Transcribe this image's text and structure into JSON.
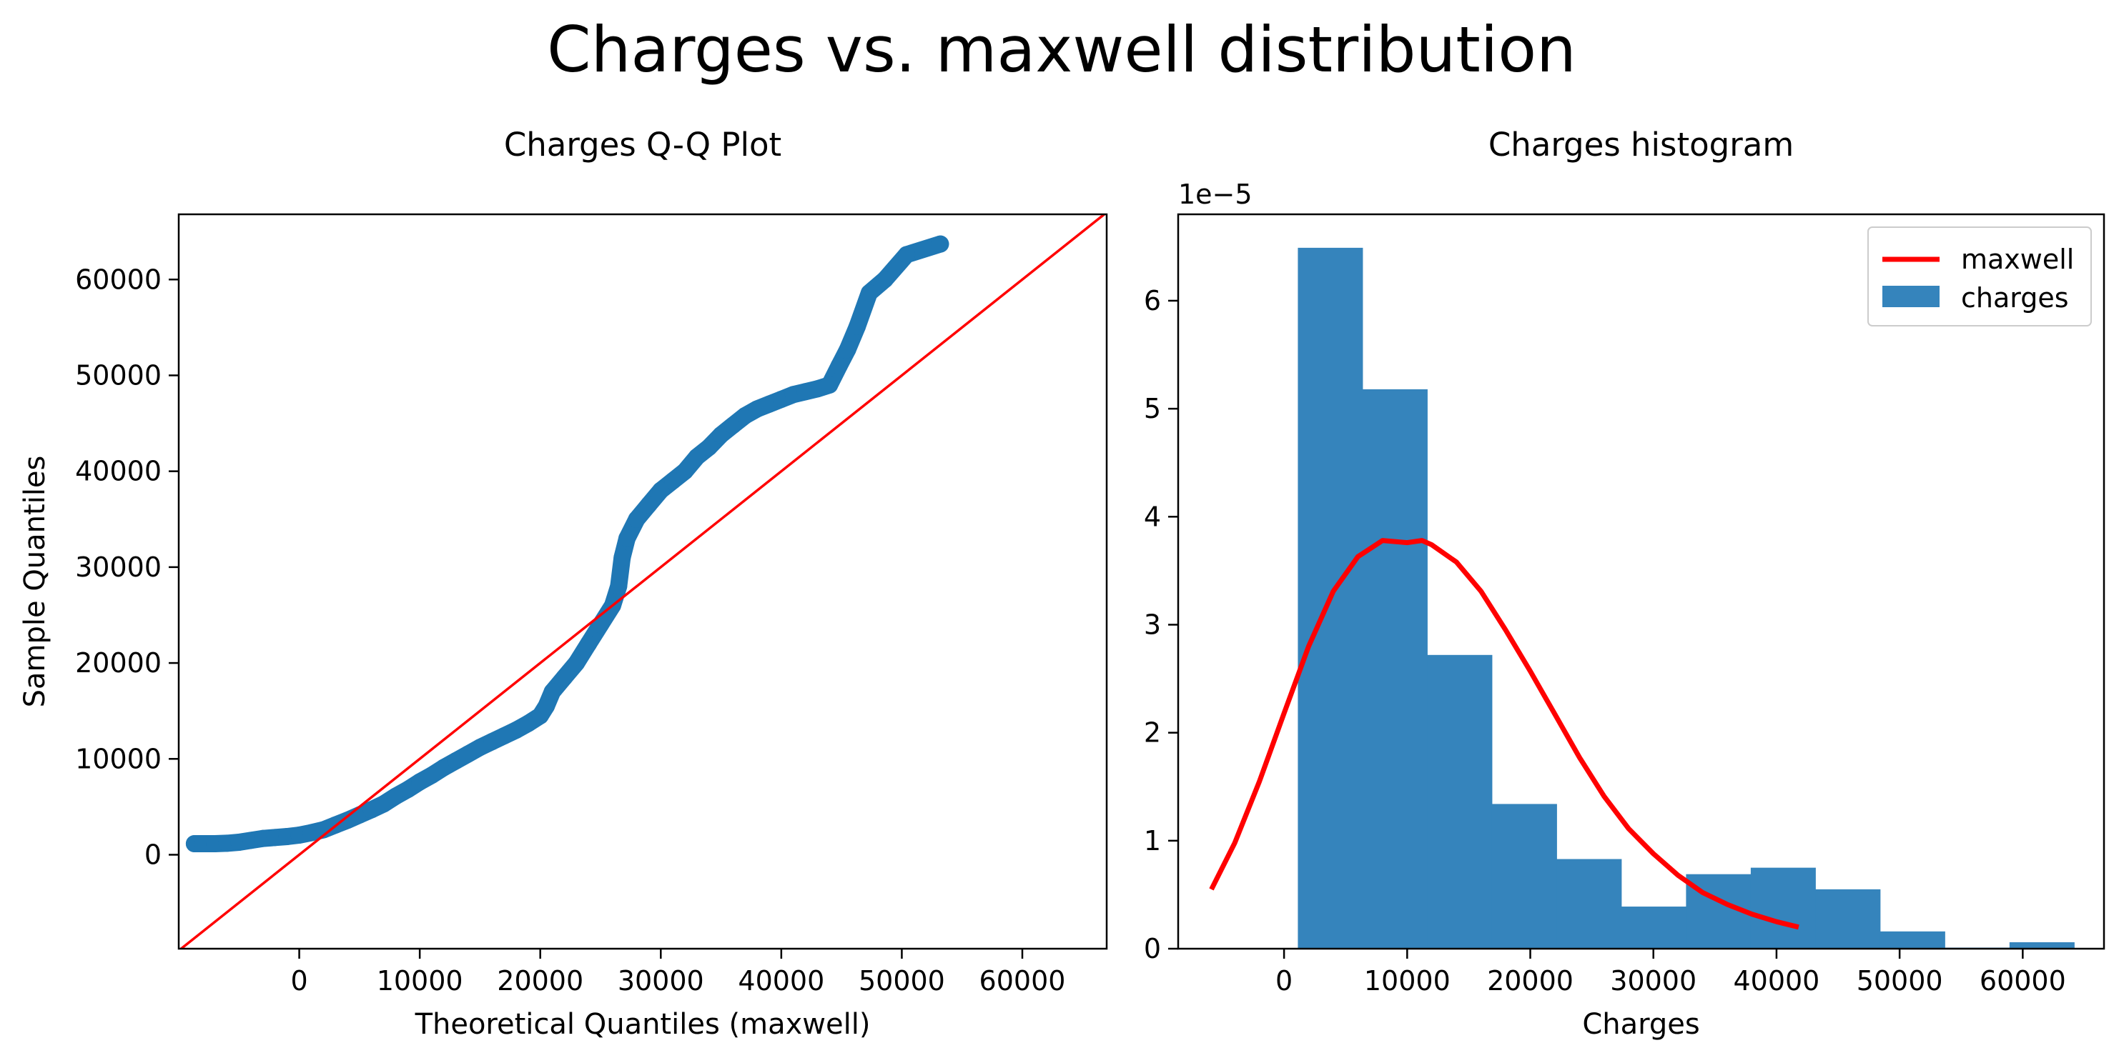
{
  "figure": {
    "title": "Charges vs. maxwell distribution"
  },
  "colors": {
    "series": "#1f77b4",
    "fit_line": "#ff0000",
    "hist": "#3584bc",
    "axes": "#000000",
    "background": "#ffffff"
  },
  "chart_data": [
    {
      "type": "scatter",
      "title": "Charges Q-Q Plot",
      "xlabel": "Theoretical Quantiles (maxwell)",
      "ylabel": "Sample Quantiles",
      "xlim": [
        -10000,
        67000
      ],
      "ylim": [
        -9800,
        66800
      ],
      "xticks": [
        0,
        10000,
        20000,
        30000,
        40000,
        50000,
        60000
      ],
      "yticks": [
        0,
        10000,
        20000,
        30000,
        40000,
        50000,
        60000
      ],
      "grid": false,
      "reference_line": {
        "name": "",
        "x": [
          -10000,
          67000
        ],
        "y": [
          -10000,
          67000
        ]
      },
      "series": [
        {
          "name": "",
          "points": [
            [
              -8700,
              1150
            ],
            [
              -8000,
              1150
            ],
            [
              -7000,
              1150
            ],
            [
              -6000,
              1200
            ],
            [
              -5000,
              1300
            ],
            [
              -4000,
              1500
            ],
            [
              -3000,
              1700
            ],
            [
              -2000,
              1800
            ],
            [
              -1000,
              1900
            ],
            [
              0,
              2050
            ],
            [
              1000,
              2300
            ],
            [
              2000,
              2600
            ],
            [
              3000,
              3100
            ],
            [
              4000,
              3600
            ],
            [
              5000,
              4150
            ],
            [
              6000,
              4700
            ],
            [
              7000,
              5300
            ],
            [
              8000,
              6100
            ],
            [
              9000,
              6800
            ],
            [
              10000,
              7600
            ],
            [
              11000,
              8300
            ],
            [
              12000,
              9100
            ],
            [
              13000,
              9800
            ],
            [
              14000,
              10500
            ],
            [
              15000,
              11200
            ],
            [
              16000,
              11800
            ],
            [
              17000,
              12400
            ],
            [
              18000,
              13000
            ],
            [
              19000,
              13700
            ],
            [
              20000,
              14500
            ],
            [
              20500,
              15500
            ],
            [
              21000,
              17000
            ],
            [
              22000,
              18500
            ],
            [
              23000,
              20000
            ],
            [
              24000,
              22000
            ],
            [
              25000,
              24000
            ],
            [
              26000,
              26000
            ],
            [
              26500,
              28000
            ],
            [
              26800,
              31000
            ],
            [
              27200,
              33000
            ],
            [
              28000,
              35000
            ],
            [
              29000,
              36500
            ],
            [
              30000,
              38000
            ],
            [
              31000,
              39000
            ],
            [
              32000,
              40000
            ],
            [
              33000,
              41500
            ],
            [
              34000,
              42500
            ],
            [
              35000,
              43800
            ],
            [
              36000,
              44800
            ],
            [
              37000,
              45800
            ],
            [
              38000,
              46500
            ],
            [
              39000,
              47000
            ],
            [
              40000,
              47500
            ],
            [
              41000,
              48000
            ],
            [
              42000,
              48300
            ],
            [
              43000,
              48600
            ],
            [
              44000,
              49000
            ],
            [
              44800,
              51000
            ],
            [
              45500,
              52700
            ],
            [
              46300,
              55100
            ],
            [
              47300,
              58600
            ],
            [
              48600,
              60000
            ],
            [
              50400,
              62600
            ],
            [
              53200,
              63700
            ]
          ]
        }
      ]
    },
    {
      "type": "bar",
      "title": "Charges histogram",
      "xlabel": "Charges",
      "ylabel": "",
      "offset_text": "1e−5",
      "xlim": [
        -8600,
        66600
      ],
      "ylim": [
        0,
        6.8
      ],
      "xticks": [
        0,
        10000,
        20000,
        30000,
        40000,
        50000,
        60000
      ],
      "yticks": [
        0,
        1,
        2,
        3,
        4,
        5,
        6
      ],
      "grid": false,
      "legend": {
        "position": "top-right",
        "entries": [
          "maxwell",
          "charges"
        ]
      },
      "histogram": {
        "name": "charges",
        "bin_edges": [
          1122,
          6377,
          11632,
          16887,
          22142,
          27397,
          32652,
          37907,
          43162,
          48417,
          53672,
          58927,
          64182
        ],
        "values": [
          6.49,
          5.18,
          2.72,
          1.34,
          0.83,
          0.39,
          0.69,
          0.75,
          0.55,
          0.16,
          0.01,
          0.06
        ]
      },
      "line": {
        "name": "maxwell",
        "x": [
          -5900,
          -4000,
          -2000,
          0,
          2000,
          4000,
          6000,
          8000,
          10000,
          11200,
          12000,
          14000,
          16000,
          18000,
          20000,
          22000,
          24000,
          26000,
          28000,
          30000,
          32000,
          34000,
          36000,
          38000,
          40000,
          41800
        ],
        "y": [
          0.55,
          0.98,
          1.55,
          2.18,
          2.8,
          3.31,
          3.63,
          3.78,
          3.76,
          3.78,
          3.74,
          3.58,
          3.31,
          2.95,
          2.57,
          2.17,
          1.77,
          1.41,
          1.11,
          0.88,
          0.68,
          0.52,
          0.41,
          0.32,
          0.25,
          0.2
        ]
      }
    }
  ]
}
